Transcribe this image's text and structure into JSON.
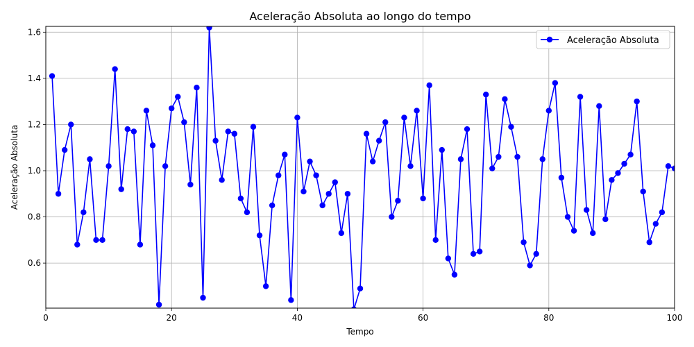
{
  "chart_data": {
    "type": "line",
    "title": "Aceleração Absoluta ao longo do tempo",
    "xlabel": "Tempo",
    "ylabel": "Aceleração Absoluta",
    "xlim": [
      0,
      100
    ],
    "ylim": [
      0.405,
      1.625
    ],
    "xticks": [
      0,
      20,
      40,
      60,
      80,
      100
    ],
    "yticks": [
      0.6,
      0.8,
      1.0,
      1.2,
      1.4,
      1.6
    ],
    "xtick_labels": [
      "0",
      "20",
      "40",
      "60",
      "80",
      "100"
    ],
    "ytick_labels": [
      "0.6",
      "0.8",
      "1.0",
      "1.2",
      "1.4",
      "1.6"
    ],
    "grid": true,
    "legend_position": "top-right",
    "series": [
      {
        "name": "Aceleração Absoluta",
        "color": "#0000ff",
        "marker": "circle",
        "x": [
          1,
          2,
          3,
          4,
          5,
          6,
          7,
          8,
          9,
          10,
          11,
          12,
          13,
          14,
          15,
          16,
          17,
          18,
          19,
          20,
          21,
          22,
          23,
          24,
          25,
          26,
          27,
          28,
          29,
          30,
          31,
          32,
          33,
          34,
          35,
          36,
          37,
          38,
          39,
          40,
          41,
          42,
          43,
          44,
          45,
          46,
          47,
          48,
          49,
          50,
          51,
          52,
          53,
          54,
          55,
          56,
          57,
          58,
          59,
          60,
          61,
          62,
          63,
          64,
          65,
          66,
          67,
          68,
          69,
          70,
          71,
          72,
          73,
          74,
          75,
          76,
          77,
          78,
          79,
          80,
          81,
          82,
          83,
          84,
          85,
          86,
          87,
          88,
          89,
          90,
          91,
          92,
          93,
          94,
          95,
          96,
          97,
          98,
          99,
          100
        ],
        "y": [
          1.41,
          0.9,
          1.09,
          1.2,
          0.68,
          0.82,
          1.05,
          0.7,
          0.7,
          1.02,
          1.44,
          0.92,
          1.18,
          1.17,
          0.68,
          1.26,
          1.11,
          0.42,
          1.02,
          1.27,
          1.32,
          1.21,
          0.94,
          1.36,
          0.45,
          1.62,
          1.13,
          0.96,
          1.17,
          1.16,
          0.88,
          0.82,
          1.19,
          0.72,
          0.5,
          0.85,
          0.98,
          1.07,
          0.44,
          1.23,
          0.91,
          1.04,
          0.98,
          0.85,
          0.9,
          0.95,
          0.73,
          0.9,
          0.4,
          0.49,
          1.16,
          1.04,
          1.13,
          1.21,
          0.8,
          0.87,
          1.23,
          1.02,
          1.26,
          0.88,
          1.37,
          0.7,
          1.09,
          0.62,
          0.55,
          1.05,
          1.18,
          0.64,
          0.65,
          1.33,
          1.01,
          1.06,
          1.31,
          1.19,
          1.06,
          0.69,
          0.59,
          0.64,
          1.05,
          1.26,
          1.38,
          0.97,
          0.8,
          0.74,
          1.32,
          0.83,
          0.73,
          1.28,
          0.79,
          0.96,
          0.99,
          1.03,
          1.07,
          1.3,
          0.91,
          0.69,
          0.77,
          0.82,
          1.02,
          1.01
        ]
      }
    ]
  }
}
